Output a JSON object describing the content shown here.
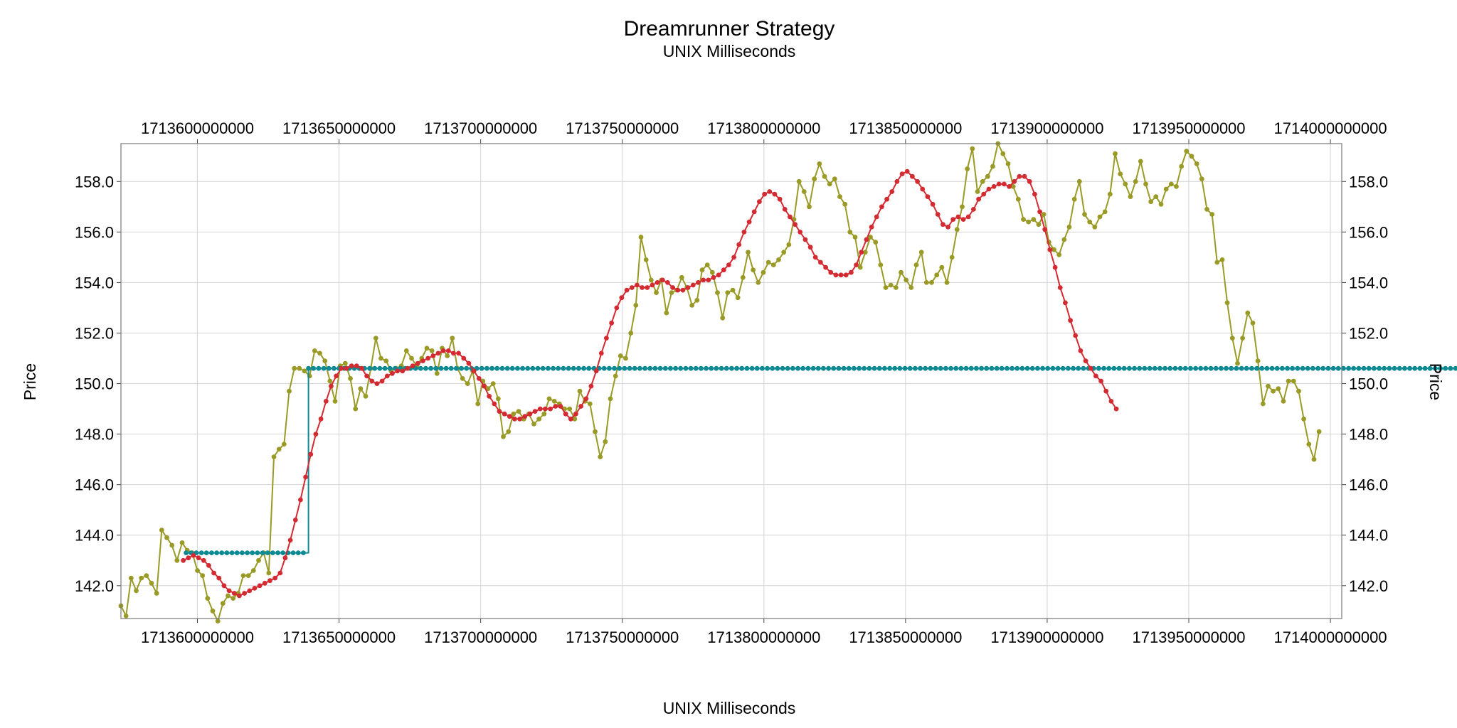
{
  "chart_data": {
    "type": "line",
    "title": "Dreamrunner Strategy",
    "subtitle": "UNIX Milliseconds",
    "xlabel": "UNIX Milliseconds",
    "ylabel": "Price",
    "xlim": [
      1713573000000,
      1714004000000
    ],
    "ylim": [
      140.7,
      159.5
    ],
    "xticks": [
      1713600000000,
      1713650000000,
      1713700000000,
      1713750000000,
      1713800000000,
      1713850000000,
      1713900000000,
      1713950000000,
      1714000000000
    ],
    "xtick_labels": [
      "1713600000000",
      "1713650000000",
      "1713700000000",
      "1713750000000",
      "1713800000000",
      "1713850000000",
      "1713900000000",
      "1713950000000",
      "1714000000000"
    ],
    "yticks": [
      142,
      144,
      146,
      148,
      150,
      152,
      154,
      156,
      158
    ],
    "ytick_labels": [
      "142.0",
      "144.0",
      "146.0",
      "148.0",
      "150.0",
      "152.0",
      "154.0",
      "156.0",
      "158.0"
    ],
    "grid": true,
    "colors": {
      "price": "#9a9a26",
      "smooth": "#d42a32",
      "signal": "#0e8a94"
    },
    "series": [
      {
        "key": "price",
        "x0": 1713573000000,
        "dx": 1800000,
        "values": [
          141.2,
          140.8,
          142.3,
          141.8,
          142.3,
          142.4,
          142.1,
          141.7,
          144.2,
          143.9,
          143.6,
          143.0,
          143.7,
          143.4,
          143.3,
          142.6,
          142.4,
          141.5,
          141.0,
          140.6,
          141.3,
          141.6,
          141.5,
          141.7,
          142.4,
          142.4,
          142.6,
          143.0,
          143.3,
          142.5,
          147.1,
          147.4,
          147.6,
          149.7,
          150.6,
          150.6,
          150.5,
          150.3,
          151.3,
          151.2,
          150.9,
          150.1,
          149.3,
          150.7,
          150.8,
          150.2,
          149.0,
          149.8,
          149.5,
          150.6,
          151.8,
          151.0,
          150.9,
          150.5,
          150.6,
          150.7,
          151.3,
          151.0,
          150.7,
          151.0,
          151.4,
          151.3,
          150.4,
          151.4,
          151.1,
          151.8,
          150.6,
          150.2,
          150.0,
          150.5,
          149.2,
          150.1,
          149.8,
          150.0,
          149.4,
          147.9,
          148.1,
          148.8,
          148.9,
          148.6,
          148.8,
          148.4,
          148.6,
          148.8,
          149.4,
          149.3,
          149.2,
          149.0,
          149.0,
          148.6,
          149.7,
          149.3,
          149.2,
          148.1,
          147.1,
          147.7,
          149.4,
          150.3,
          151.1,
          151.0,
          152.0,
          153.1,
          155.8,
          154.9,
          154.1,
          153.6,
          154.1,
          152.8,
          153.6,
          153.7,
          154.2,
          153.8,
          153.1,
          153.3,
          154.5,
          154.7,
          154.4,
          153.6,
          152.6,
          153.6,
          153.7,
          153.4,
          154.2,
          155.2,
          154.5,
          154.0,
          154.4,
          154.8,
          154.7,
          154.9,
          155.2,
          155.5,
          156.5,
          158.0,
          157.6,
          157.0,
          158.1,
          158.7,
          158.2,
          157.9,
          158.1,
          157.4,
          157.1,
          156.0,
          155.8,
          154.6,
          155.2,
          155.8,
          155.6,
          154.7,
          153.8,
          153.9,
          153.8,
          154.4,
          154.1,
          153.8,
          154.7,
          155.2,
          154.0,
          154.0,
          154.3,
          154.6,
          154.0,
          155.0,
          156.1,
          157.0,
          158.5,
          159.3,
          157.6,
          158.0,
          158.2,
          158.6,
          159.5,
          159.1,
          158.7,
          157.8,
          157.3,
          156.5,
          156.4,
          156.5,
          156.3,
          156.7,
          155.6,
          155.3,
          155.1,
          155.7,
          156.2,
          157.3,
          158.0,
          156.7,
          156.4,
          156.2,
          156.6,
          156.8,
          157.5,
          159.1,
          158.3,
          157.9,
          157.4,
          158.0,
          158.8,
          157.9,
          157.2,
          157.4,
          157.1,
          157.7,
          157.9,
          157.8,
          158.6,
          159.2,
          159.0,
          158.7,
          158.1,
          156.9,
          156.7,
          154.8,
          154.9,
          153.2,
          151.8,
          150.8,
          151.8,
          152.8,
          152.4,
          150.9,
          149.2,
          149.9,
          149.7,
          149.8,
          149.3,
          150.1,
          150.1,
          149.7,
          148.6,
          147.6,
          147.0,
          148.1
        ]
      },
      {
        "key": "smooth",
        "x0": 1713595000000,
        "dx": 1800000,
        "values": [
          143.0,
          143.1,
          143.2,
          143.1,
          143.0,
          142.8,
          142.5,
          142.3,
          142.0,
          141.8,
          141.7,
          141.6,
          141.7,
          141.8,
          141.9,
          142.0,
          142.1,
          142.2,
          142.3,
          142.5,
          143.1,
          143.8,
          144.6,
          145.4,
          146.3,
          147.2,
          148.0,
          148.6,
          149.3,
          149.9,
          150.3,
          150.6,
          150.6,
          150.7,
          150.7,
          150.6,
          150.3,
          150.1,
          150.0,
          150.1,
          150.3,
          150.4,
          150.5,
          150.5,
          150.6,
          150.7,
          150.8,
          150.9,
          151.0,
          151.1,
          151.2,
          151.3,
          151.3,
          151.2,
          151.2,
          151.0,
          150.8,
          150.5,
          150.2,
          149.9,
          149.5,
          149.2,
          148.9,
          148.8,
          148.7,
          148.6,
          148.6,
          148.7,
          148.8,
          148.9,
          149.0,
          149.0,
          149.0,
          149.1,
          149.1,
          148.8,
          148.6,
          148.8,
          149.1,
          149.4,
          149.9,
          150.5,
          151.2,
          151.8,
          152.4,
          153.0,
          153.4,
          153.7,
          153.8,
          153.9,
          153.8,
          153.8,
          153.9,
          154.0,
          154.1,
          154.0,
          153.8,
          153.7,
          153.7,
          153.8,
          153.9,
          154.0,
          154.1,
          154.1,
          154.2,
          154.3,
          154.5,
          154.7,
          155.0,
          155.5,
          156.0,
          156.4,
          156.8,
          157.2,
          157.5,
          157.6,
          157.5,
          157.3,
          156.9,
          156.6,
          156.3,
          156.0,
          155.7,
          155.4,
          155.0,
          154.8,
          154.6,
          154.4,
          154.3,
          154.3,
          154.3,
          154.4,
          154.7,
          155.2,
          155.7,
          156.2,
          156.6,
          157.0,
          157.3,
          157.6,
          158.0,
          158.3,
          158.4,
          158.2,
          158.0,
          157.7,
          157.4,
          157.1,
          156.7,
          156.3,
          156.2,
          156.5,
          156.6,
          156.5,
          156.6,
          156.9,
          157.3,
          157.5,
          157.7,
          157.8,
          157.9,
          157.9,
          157.8,
          158.0,
          158.2,
          158.2,
          158.0,
          157.5,
          156.8,
          156.1,
          155.3,
          154.6,
          153.8,
          153.2,
          152.5,
          151.9,
          151.3,
          150.9,
          150.6,
          150.3,
          150.1,
          149.7,
          149.3,
          149.0
        ]
      },
      {
        "key": "signal",
        "x0": 1713596000000,
        "dx": 1800000,
        "values": [
          143.3,
          143.3,
          143.3,
          143.3,
          143.3,
          143.3,
          143.3,
          143.3,
          143.3,
          143.3,
          143.3,
          143.3,
          143.3,
          143.3,
          143.3,
          143.3,
          143.3,
          143.3,
          143.3,
          143.3,
          143.3,
          143.3,
          143.3,
          143.3,
          150.6,
          150.6,
          150.6,
          150.6,
          150.6,
          150.6,
          150.6,
          150.6,
          150.6,
          150.6,
          150.6,
          150.6,
          150.6,
          150.6,
          150.6,
          150.6,
          150.6,
          150.6,
          150.6,
          150.6,
          150.6,
          150.6,
          150.6,
          150.6,
          150.6,
          150.6,
          150.6,
          150.6,
          150.6,
          150.6,
          150.6,
          150.6,
          150.6,
          150.6,
          150.6,
          150.6,
          150.6,
          150.6,
          150.6,
          150.6,
          150.6,
          150.6,
          150.6,
          150.6,
          150.6,
          150.6,
          150.6,
          150.6,
          150.6,
          150.6,
          150.6,
          150.6,
          150.6,
          150.6,
          150.6,
          150.6,
          150.6,
          150.6,
          150.6,
          150.6,
          150.6,
          150.6,
          150.6,
          150.6,
          150.6,
          150.6,
          150.6,
          150.6,
          150.6,
          150.6,
          150.6,
          150.6,
          150.6,
          150.6,
          150.6,
          150.6,
          150.6,
          150.6,
          150.6,
          150.6,
          150.6,
          150.6,
          150.6,
          150.6,
          150.6,
          150.6,
          150.6,
          150.6,
          150.6,
          150.6,
          150.6,
          150.6,
          150.6,
          150.6,
          150.6,
          150.6,
          150.6,
          150.6,
          150.6,
          150.6,
          150.6,
          150.6,
          150.6,
          150.6,
          150.6,
          150.6,
          150.6,
          150.6,
          150.6,
          150.6,
          150.6,
          150.6,
          150.6,
          150.6,
          150.6,
          150.6,
          150.6,
          150.6,
          150.6,
          150.6,
          150.6,
          150.6,
          150.6,
          150.6,
          150.6,
          150.6,
          150.6,
          150.6,
          150.6,
          150.6,
          150.6,
          150.6,
          150.6,
          150.6,
          150.6,
          150.6,
          150.6,
          150.6,
          150.6,
          150.6,
          150.6,
          150.6,
          150.6,
          150.6,
          150.6,
          150.6,
          150.6,
          150.6,
          150.6,
          150.6,
          150.6,
          150.6,
          150.6,
          150.6,
          150.6,
          150.6,
          150.6,
          150.6,
          150.6,
          150.6,
          150.6,
          150.6,
          150.6,
          150.6,
          150.6,
          150.6,
          150.6,
          150.6,
          150.6,
          150.6,
          150.6,
          150.6,
          150.6,
          150.6,
          150.6,
          150.6,
          150.6,
          150.6,
          150.6,
          150.6,
          150.6,
          150.6,
          150.6,
          150.6,
          150.6,
          150.6,
          150.6,
          150.6,
          150.6,
          150.6,
          150.6,
          150.6,
          150.6,
          150.6,
          150.6,
          150.6,
          150.6,
          150.6,
          150.6,
          150.6,
          150.6,
          150.6,
          150.6,
          150.6,
          150.6,
          150.6,
          150.6,
          150.6,
          150.6,
          150.6,
          150.6,
          150.6,
          150.6,
          150.6,
          150.6,
          150.6,
          150.6,
          150.6,
          150.6,
          150.6,
          150.6,
          150.6,
          150.6,
          150.6,
          150.6,
          150.6,
          150.6,
          150.6,
          150.6,
          150.6,
          150.6,
          150.6,
          150.6,
          150.6
        ]
      }
    ]
  }
}
